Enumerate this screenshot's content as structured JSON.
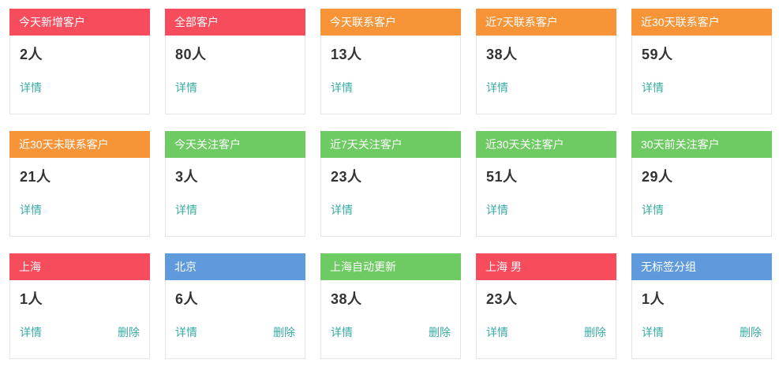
{
  "colors": {
    "red": "#f64c5c",
    "orange": "#f79438",
    "green": "#6ecb63",
    "blue": "#5f9bdc",
    "link": "#38aba3",
    "count_text": "#333333",
    "header_text": "#ffffff",
    "card_border": "#e5e5e5"
  },
  "labels": {
    "details": "详情",
    "delete": "删除"
  },
  "cards": [
    {
      "title": "今天新增客户",
      "color": "red",
      "count": "2人",
      "deletable": false
    },
    {
      "title": "全部客户",
      "color": "red",
      "count": "80人",
      "deletable": false
    },
    {
      "title": "今天联系客户",
      "color": "orange",
      "count": "13人",
      "deletable": false
    },
    {
      "title": "近7天联系客户",
      "color": "orange",
      "count": "38人",
      "deletable": false
    },
    {
      "title": "近30天联系客户",
      "color": "orange",
      "count": "59人",
      "deletable": false
    },
    {
      "title": "近30天未联系客户",
      "color": "orange",
      "count": "21人",
      "deletable": false
    },
    {
      "title": "今天关注客户",
      "color": "green",
      "count": "3人",
      "deletable": false
    },
    {
      "title": "近7天关注客户",
      "color": "green",
      "count": "23人",
      "deletable": false
    },
    {
      "title": "近30天关注客户",
      "color": "green",
      "count": "51人",
      "deletable": false
    },
    {
      "title": "30天前关注客户",
      "color": "green",
      "count": "29人",
      "deletable": false
    },
    {
      "title": "上海",
      "color": "red",
      "count": "1人",
      "deletable": true
    },
    {
      "title": "北京",
      "color": "blue",
      "count": "6人",
      "deletable": true
    },
    {
      "title": "上海自动更新",
      "color": "green",
      "count": "38人",
      "deletable": true
    },
    {
      "title": "上海 男",
      "color": "red",
      "count": "23人",
      "deletable": true
    },
    {
      "title": "无标签分组",
      "color": "blue",
      "count": "1人",
      "deletable": true
    }
  ]
}
